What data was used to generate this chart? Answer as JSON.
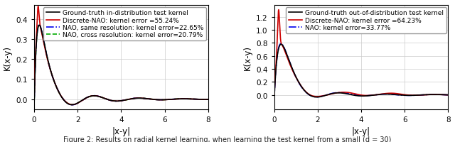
{
  "left_plot": {
    "ylabel": "K(x-y)",
    "xlabel": "|x-y|",
    "xlim": [
      0,
      8
    ],
    "ylim": [
      -0.05,
      0.47
    ],
    "yticks": [
      0.0,
      0.1,
      0.2,
      0.3,
      0.4
    ],
    "xticks": [
      0,
      2,
      4,
      6,
      8
    ],
    "legend": [
      {
        "label": "Ground-truth in-distribution test kernel",
        "color": "#000000",
        "style": "solid",
        "lw": 1.2
      },
      {
        "label": "Discrete-NAO: kernel error =55.24%",
        "color": "#cc0000",
        "style": "solid",
        "lw": 1.2
      },
      {
        "label": "NAO, same resolution: kernel error=22.65%",
        "color": "#0000ee",
        "style": "dashdot",
        "lw": 1.2
      },
      {
        "label": "NAO, cross resolution: kernel error=20.79%",
        "color": "#00aa00",
        "style": "dashed",
        "lw": 1.2
      }
    ]
  },
  "right_plot": {
    "ylabel": "K(x-y)",
    "xlabel": "|x-y|",
    "xlim": [
      0,
      8
    ],
    "ylim": [
      -0.22,
      1.38
    ],
    "yticks": [
      0.0,
      0.2,
      0.4,
      0.6,
      0.8,
      1.0,
      1.2
    ],
    "xticks": [
      0,
      2,
      4,
      6,
      8
    ],
    "legend": [
      {
        "label": "Ground-truth out-of-distribution test kernel",
        "color": "#000000",
        "style": "solid",
        "lw": 1.2
      },
      {
        "label": "Discrete-NAO: kernel error =64.23%",
        "color": "#cc0000",
        "style": "solid",
        "lw": 1.2
      },
      {
        "label": "NAO: kernel error=33.77%",
        "color": "#0000ee",
        "style": "dashdot",
        "lw": 1.2
      }
    ]
  },
  "caption": "Figure 2: Results on radial kernel learning, when learning the test kernel from a small (d = 30)",
  "background_color": "#ffffff",
  "grid_color": "#cccccc",
  "legend_fontsize": 6.5,
  "tick_fontsize": 7.5,
  "label_fontsize": 8.5
}
